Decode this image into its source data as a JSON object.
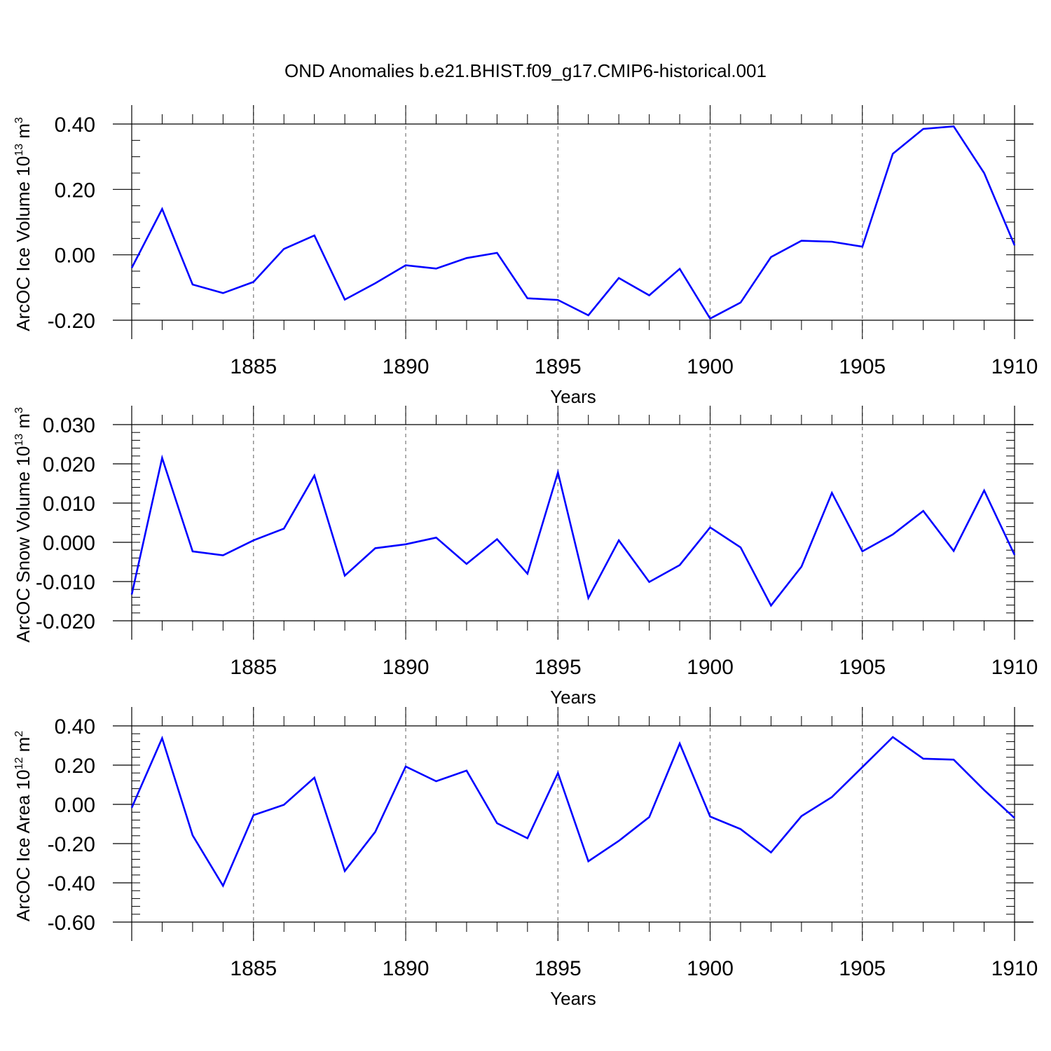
{
  "title": "OND Anomalies b.e21.BHIST.f09_g17.CMIP6-historical.001",
  "line_color": "#0000ff",
  "chart_data": [
    {
      "type": "line",
      "ylabel": "ArcOC Ice Volume 10",
      "ylabel_exponent": "13",
      "ylabel_unit": " m",
      "ylabel_unit_exponent": "3",
      "xlabel": "Years",
      "xlim": [
        1881,
        1910
      ],
      "ylim": [
        -0.2,
        0.4
      ],
      "yticks": [
        {
          "value": 0.4,
          "label": "0.40"
        },
        {
          "value": 0.2,
          "label": "0.20"
        },
        {
          "value": 0.0,
          "label": "0.00"
        },
        {
          "value": -0.2,
          "label": "-0.20"
        }
      ],
      "y_minor_step": 0.05,
      "xticks": [
        {
          "value": 1885,
          "label": "1885"
        },
        {
          "value": 1890,
          "label": "1890"
        },
        {
          "value": 1895,
          "label": "1895"
        },
        {
          "value": 1900,
          "label": "1900"
        },
        {
          "value": 1905,
          "label": "1905"
        },
        {
          "value": 1910,
          "label": "1910"
        }
      ],
      "grid": "vertical dashed at major x ticks",
      "x": [
        1881,
        1882,
        1883,
        1884,
        1885,
        1886,
        1887,
        1888,
        1889,
        1890,
        1891,
        1892,
        1893,
        1894,
        1895,
        1896,
        1897,
        1898,
        1899,
        1900,
        1901,
        1902,
        1903,
        1904,
        1905,
        1906,
        1907,
        1908,
        1909,
        1910
      ],
      "series": [
        {
          "values": [
            -0.04,
            0.14,
            -0.091,
            -0.117,
            -0.083,
            0.018,
            0.059,
            -0.137,
            -0.087,
            -0.032,
            -0.042,
            -0.01,
            0.006,
            -0.133,
            -0.138,
            -0.185,
            -0.071,
            -0.124,
            -0.043,
            -0.195,
            -0.146,
            -0.007,
            0.043,
            0.04,
            0.025,
            0.309,
            0.385,
            0.393,
            0.25,
            0.029
          ]
        }
      ]
    },
    {
      "type": "line",
      "ylabel": "ArcOC Snow Volume 10",
      "ylabel_exponent": "13",
      "ylabel_unit": " m",
      "ylabel_unit_exponent": "3",
      "xlabel": "Years",
      "xlim": [
        1881,
        1910
      ],
      "ylim": [
        -0.02,
        0.03
      ],
      "yticks": [
        {
          "value": 0.03,
          "label": "0.030"
        },
        {
          "value": 0.02,
          "label": "0.020"
        },
        {
          "value": 0.01,
          "label": "0.010"
        },
        {
          "value": 0.0,
          "label": "0.000"
        },
        {
          "value": -0.01,
          "label": "-0.010"
        },
        {
          "value": -0.02,
          "label": "-0.020"
        }
      ],
      "y_minor_step": 0.002,
      "xticks": [
        {
          "value": 1885,
          "label": "1885"
        },
        {
          "value": 1890,
          "label": "1890"
        },
        {
          "value": 1895,
          "label": "1895"
        },
        {
          "value": 1900,
          "label": "1900"
        },
        {
          "value": 1905,
          "label": "1905"
        },
        {
          "value": 1910,
          "label": "1910"
        }
      ],
      "grid": "vertical dashed at major x ticks",
      "x": [
        1881,
        1882,
        1883,
        1884,
        1885,
        1886,
        1887,
        1888,
        1889,
        1890,
        1891,
        1892,
        1893,
        1894,
        1895,
        1896,
        1897,
        1898,
        1899,
        1900,
        1901,
        1902,
        1903,
        1904,
        1905,
        1906,
        1907,
        1908,
        1909,
        1910
      ],
      "series": [
        {
          "values": [
            -0.0133,
            0.0215,
            -0.0023,
            -0.0033,
            0.0005,
            0.0035,
            0.017,
            -0.0085,
            -0.0015,
            -0.0005,
            0.0012,
            -0.0055,
            0.0008,
            -0.008,
            0.0178,
            -0.0142,
            0.0005,
            -0.0101,
            -0.0058,
            0.0038,
            -0.0013,
            -0.0161,
            -0.0062,
            0.0126,
            -0.0023,
            0.002,
            0.008,
            -0.0022,
            0.0132,
            -0.0032
          ]
        }
      ]
    },
    {
      "type": "line",
      "ylabel": "ArcOC Ice Area 10",
      "ylabel_exponent": "12",
      "ylabel_unit": " m",
      "ylabel_unit_exponent": "2",
      "xlabel": "Years",
      "xlim": [
        1881,
        1910
      ],
      "ylim": [
        -0.6,
        0.4
      ],
      "yticks": [
        {
          "value": 0.4,
          "label": "0.40"
        },
        {
          "value": 0.2,
          "label": "0.20"
        },
        {
          "value": 0.0,
          "label": "0.00"
        },
        {
          "value": -0.2,
          "label": "-0.20"
        },
        {
          "value": -0.4,
          "label": "-0.40"
        },
        {
          "value": -0.6,
          "label": "-0.60"
        }
      ],
      "y_minor_step": 0.04,
      "xticks": [
        {
          "value": 1885,
          "label": "1885"
        },
        {
          "value": 1890,
          "label": "1890"
        },
        {
          "value": 1895,
          "label": "1895"
        },
        {
          "value": 1900,
          "label": "1900"
        },
        {
          "value": 1905,
          "label": "1905"
        },
        {
          "value": 1910,
          "label": "1910"
        }
      ],
      "grid": "vertical dashed at major x ticks",
      "x": [
        1881,
        1882,
        1883,
        1884,
        1885,
        1886,
        1887,
        1888,
        1889,
        1890,
        1891,
        1892,
        1893,
        1894,
        1895,
        1896,
        1897,
        1898,
        1899,
        1900,
        1901,
        1902,
        1903,
        1904,
        1905,
        1906,
        1907,
        1908,
        1909,
        1910
      ],
      "series": [
        {
          "values": [
            -0.017,
            0.337,
            -0.158,
            -0.415,
            -0.055,
            -0.002,
            0.136,
            -0.34,
            -0.14,
            0.193,
            0.118,
            0.172,
            -0.096,
            -0.173,
            0.16,
            -0.29,
            -0.186,
            -0.065,
            0.31,
            -0.062,
            -0.126,
            -0.245,
            -0.06,
            0.037,
            0.19,
            0.343,
            0.233,
            0.228,
            0.073,
            -0.07
          ]
        }
      ]
    }
  ]
}
